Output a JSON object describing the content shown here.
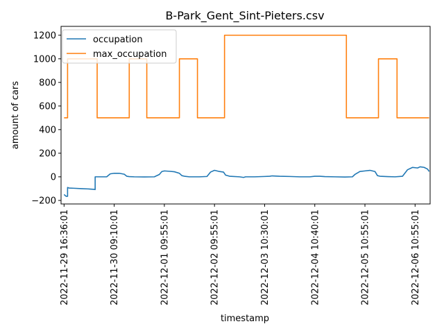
{
  "chart_data": {
    "type": "line",
    "title": "B-Park_Gent_Sint-Pieters.csv",
    "xlabel": "timestamp",
    "ylabel": "amount of cars",
    "ylim": [
      -230,
      1275
    ],
    "xlim": [
      -0.06,
      7.3
    ],
    "grid": false,
    "legend_position": "upper-left",
    "y_ticks": [
      -200,
      0,
      200,
      400,
      600,
      800,
      1000,
      1200
    ],
    "y_tick_labels": [
      "−200",
      "0",
      "200",
      "400",
      "600",
      "800",
      "1000",
      "1200"
    ],
    "x_ticks": [
      0,
      1,
      2,
      3,
      4,
      5,
      6,
      7
    ],
    "x_tick_labels": [
      "2022-11-29 16:36:01",
      "2022-11-30 09:10:01",
      "2022-12-01 09:55:01",
      "2022-12-02 09:55:01",
      "2022-12-03 10:30:01",
      "2022-12-04 10:40:01",
      "2022-12-05 10:55:01",
      "2022-12-06 10:55:01"
    ],
    "series": [
      {
        "name": "occupation",
        "color": "#1f77b4",
        "x": [
          0,
          0.04,
          0.07,
          0.07,
          0.1,
          0.2,
          0.35,
          0.5,
          0.6,
          0.62,
          0.62,
          0.7,
          0.85,
          0.92,
          1.0,
          1.1,
          1.2,
          1.25,
          1.3,
          1.4,
          1.6,
          1.8,
          1.9,
          1.95,
          2.0,
          2.1,
          2.2,
          2.3,
          2.35,
          2.4,
          2.5,
          2.7,
          2.85,
          2.92,
          3.0,
          3.1,
          3.18,
          3.22,
          3.3,
          3.5,
          3.58,
          3.62,
          3.8,
          4.0,
          4.1,
          4.15,
          4.3,
          4.5,
          4.7,
          4.9,
          5.0,
          5.1,
          5.2,
          5.4,
          5.6,
          5.75,
          5.8,
          5.9,
          6.0,
          6.1,
          6.2,
          6.25,
          6.3,
          6.45,
          6.6,
          6.75,
          6.85,
          6.95,
          7.05,
          7.1,
          7.18,
          7.25,
          7.28
        ],
        "y": [
          -150,
          -165,
          -165,
          -90,
          -95,
          -97,
          -100,
          -103,
          -106,
          -108,
          0,
          0,
          0,
          25,
          30,
          30,
          22,
          5,
          2,
          0,
          -1,
          0,
          20,
          45,
          50,
          47,
          43,
          30,
          10,
          5,
          0,
          0,
          3,
          40,
          55,
          45,
          40,
          15,
          5,
          0,
          -5,
          0,
          0,
          3,
          5,
          8,
          5,
          3,
          0,
          0,
          5,
          5,
          2,
          0,
          -2,
          0,
          20,
          45,
          50,
          55,
          45,
          10,
          5,
          2,
          0,
          5,
          60,
          80,
          75,
          85,
          80,
          65,
          45
        ]
      },
      {
        "name": "max_occupation",
        "color": "#ff7f0e",
        "x": [
          0,
          0.07,
          0.07,
          0.66,
          0.66,
          1.3,
          1.3,
          1.65,
          1.65,
          2.3,
          2.3,
          2.66,
          2.66,
          3.2,
          3.2,
          5.63,
          5.63,
          6.27,
          6.27,
          6.64,
          6.64,
          7.28
        ],
        "y": [
          500,
          500,
          1000,
          1000,
          500,
          500,
          1000,
          1000,
          500,
          500,
          1000,
          1000,
          500,
          500,
          1200,
          1200,
          500,
          500,
          1000,
          1000,
          500,
          500
        ]
      }
    ]
  }
}
